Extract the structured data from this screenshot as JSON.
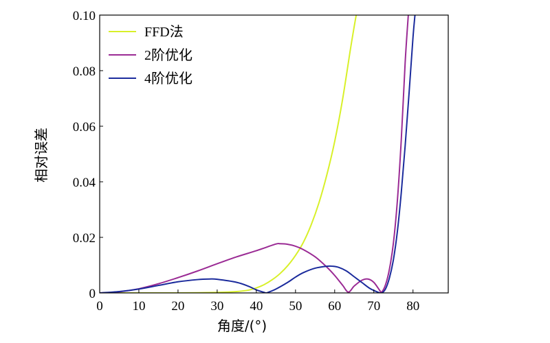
{
  "chart_data": {
    "type": "line",
    "title": "",
    "xlabel": "角度/(°)",
    "ylabel": "相对误差",
    "xlim": [
      0,
      89
    ],
    "ylim": [
      0,
      0.1
    ],
    "xticks": [
      0,
      10,
      20,
      30,
      40,
      50,
      60,
      70,
      80
    ],
    "yticks": [
      0,
      0.02,
      0.04,
      0.06,
      0.08,
      0.1
    ],
    "xtick_labels": [
      "0",
      "10",
      "20",
      "30",
      "40",
      "50",
      "60",
      "70",
      "80"
    ],
    "ytick_labels": [
      "0",
      "0.02",
      "0.04",
      "0.06",
      "0.08",
      "0.10"
    ],
    "grid": false,
    "legend_position": "top-left",
    "series": [
      {
        "name": "FFD法",
        "color": "#d8f028",
        "x": [
          0,
          20,
          30,
          35,
          38,
          40,
          42,
          44,
          46,
          48,
          50,
          52,
          54,
          56,
          58,
          60,
          62,
          64,
          65,
          65.5
        ],
        "y": [
          0,
          0,
          0.0002,
          0.0005,
          0.001,
          0.0018,
          0.003,
          0.0047,
          0.0069,
          0.0098,
          0.0135,
          0.0182,
          0.0245,
          0.0325,
          0.0425,
          0.0545,
          0.0695,
          0.0875,
          0.096,
          0.1
        ]
      },
      {
        "name": "2阶优化",
        "color": "#9a2a94",
        "x": [
          0,
          5,
          10,
          15,
          20,
          25,
          30,
          35,
          40,
          45,
          46,
          48,
          50,
          52,
          55,
          58,
          60,
          62,
          63.5,
          65,
          67,
          68.5,
          70,
          71.5,
          72,
          73,
          74,
          75,
          76,
          77,
          78,
          78.8
        ],
        "y": [
          0,
          0.0004,
          0.0015,
          0.0033,
          0.0055,
          0.0079,
          0.0105,
          0.013,
          0.0152,
          0.0176,
          0.0177,
          0.0175,
          0.0168,
          0.0156,
          0.013,
          0.0093,
          0.0063,
          0.0028,
          0.0003,
          0.0025,
          0.0046,
          0.005,
          0.0038,
          0.0009,
          0.0003,
          0.003,
          0.0087,
          0.018,
          0.033,
          0.055,
          0.083,
          0.1
        ]
      },
      {
        "name": "4阶优化",
        "color": "#1a2a9c",
        "x": [
          0,
          5,
          10,
          15,
          20,
          25,
          28,
          30,
          35,
          38,
          40,
          42,
          42.5,
          43,
          45,
          48,
          50,
          52,
          55,
          58,
          59.5,
          61,
          63,
          65,
          67,
          69,
          71,
          72,
          73,
          74,
          75,
          76,
          77,
          78,
          79,
          80,
          80.5
        ],
        "y": [
          0,
          0.0005,
          0.0014,
          0.0027,
          0.004,
          0.0048,
          0.005,
          0.0049,
          0.0038,
          0.0024,
          0.0011,
          0.0002,
          0,
          0.0002,
          0.0014,
          0.0038,
          0.0057,
          0.0073,
          0.0089,
          0.0096,
          0.0096,
          0.0092,
          0.0079,
          0.0058,
          0.0037,
          0.0016,
          0.0003,
          0,
          0.0015,
          0.0055,
          0.012,
          0.022,
          0.036,
          0.053,
          0.072,
          0.092,
          0.1
        ]
      }
    ]
  }
}
